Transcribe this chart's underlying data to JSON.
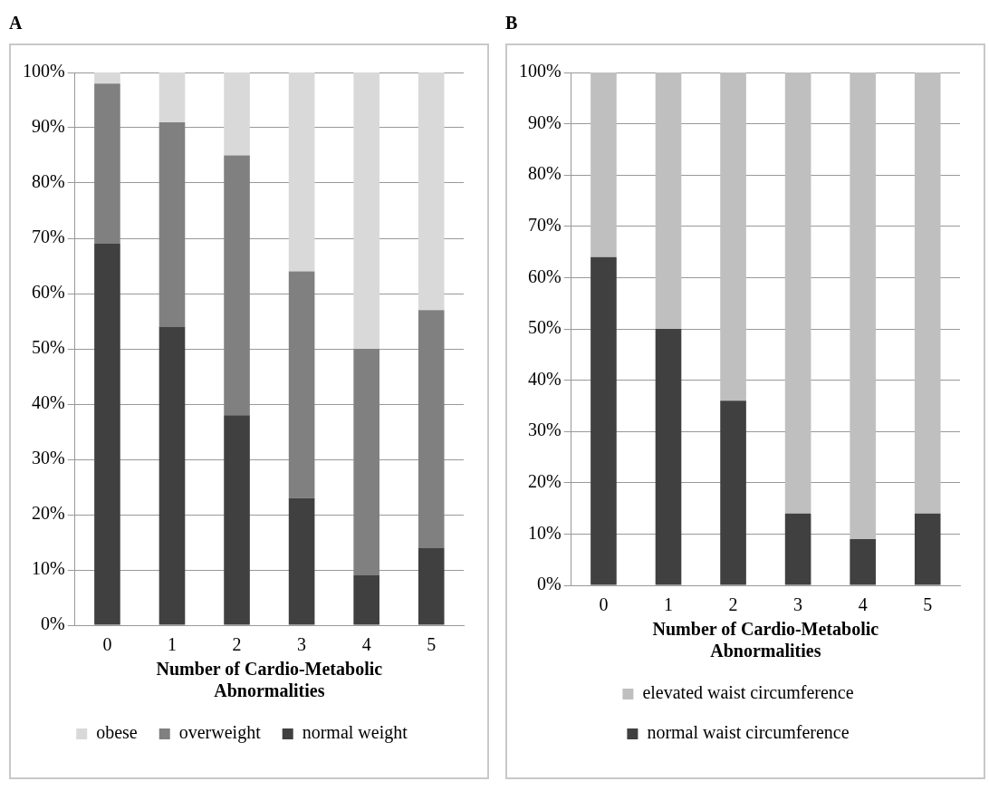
{
  "chart_data": [
    {
      "type": "bar",
      "title": "A",
      "xlabel": "Number of Cardio-Metabolic Abnormalities",
      "categories": [
        "0",
        "1",
        "2",
        "3",
        "4",
        "5"
      ],
      "stacked": true,
      "series": [
        {
          "name": "normal weight",
          "color": "#404040",
          "values": [
            69,
            54,
            38,
            23,
            9,
            14
          ]
        },
        {
          "name": "overweight",
          "color": "#808080",
          "values": [
            29,
            37,
            47,
            41,
            41,
            43
          ]
        },
        {
          "name": "obese",
          "color": "#d9d9d9",
          "values": [
            2,
            9,
            15,
            36,
            50,
            43
          ]
        }
      ],
      "ylim": [
        0,
        100
      ],
      "yticks": [
        {
          "value": 0,
          "label": "0%"
        },
        {
          "value": 10,
          "label": "10%"
        },
        {
          "value": 20,
          "label": "20%"
        },
        {
          "value": 30,
          "label": "30%"
        },
        {
          "value": 40,
          "label": "40%"
        },
        {
          "value": 50,
          "label": "50%"
        },
        {
          "value": 60,
          "label": "60%"
        },
        {
          "value": 70,
          "label": "70%"
        },
        {
          "value": 80,
          "label": "80%"
        },
        {
          "value": 90,
          "label": "90%"
        },
        {
          "value": 100,
          "label": "100%"
        }
      ],
      "grid": "y",
      "legend": "bottom"
    },
    {
      "type": "bar",
      "title": "B",
      "xlabel": "Number of Cardio-Metabolic Abnormalities",
      "categories": [
        "0",
        "1",
        "2",
        "3",
        "4",
        "5"
      ],
      "stacked": true,
      "series": [
        {
          "name": "normal waist circumference",
          "color": "#404040",
          "values": [
            64,
            50,
            36,
            14,
            9,
            14
          ]
        },
        {
          "name": "elevated waist circumference",
          "color": "#bfbfbf",
          "values": [
            36,
            50,
            64,
            86,
            91,
            86
          ]
        }
      ],
      "ylim": [
        0,
        100
      ],
      "yticks": [
        {
          "value": 0,
          "label": "0%"
        },
        {
          "value": 10,
          "label": "10%"
        },
        {
          "value": 20,
          "label": "20%"
        },
        {
          "value": 30,
          "label": "30%"
        },
        {
          "value": 40,
          "label": "40%"
        },
        {
          "value": 50,
          "label": "50%"
        },
        {
          "value": 60,
          "label": "60%"
        },
        {
          "value": 70,
          "label": "70%"
        },
        {
          "value": 80,
          "label": "80%"
        },
        {
          "value": 90,
          "label": "90%"
        },
        {
          "value": 100,
          "label": "100%"
        }
      ],
      "grid": "y",
      "legend": "bottom"
    }
  ]
}
